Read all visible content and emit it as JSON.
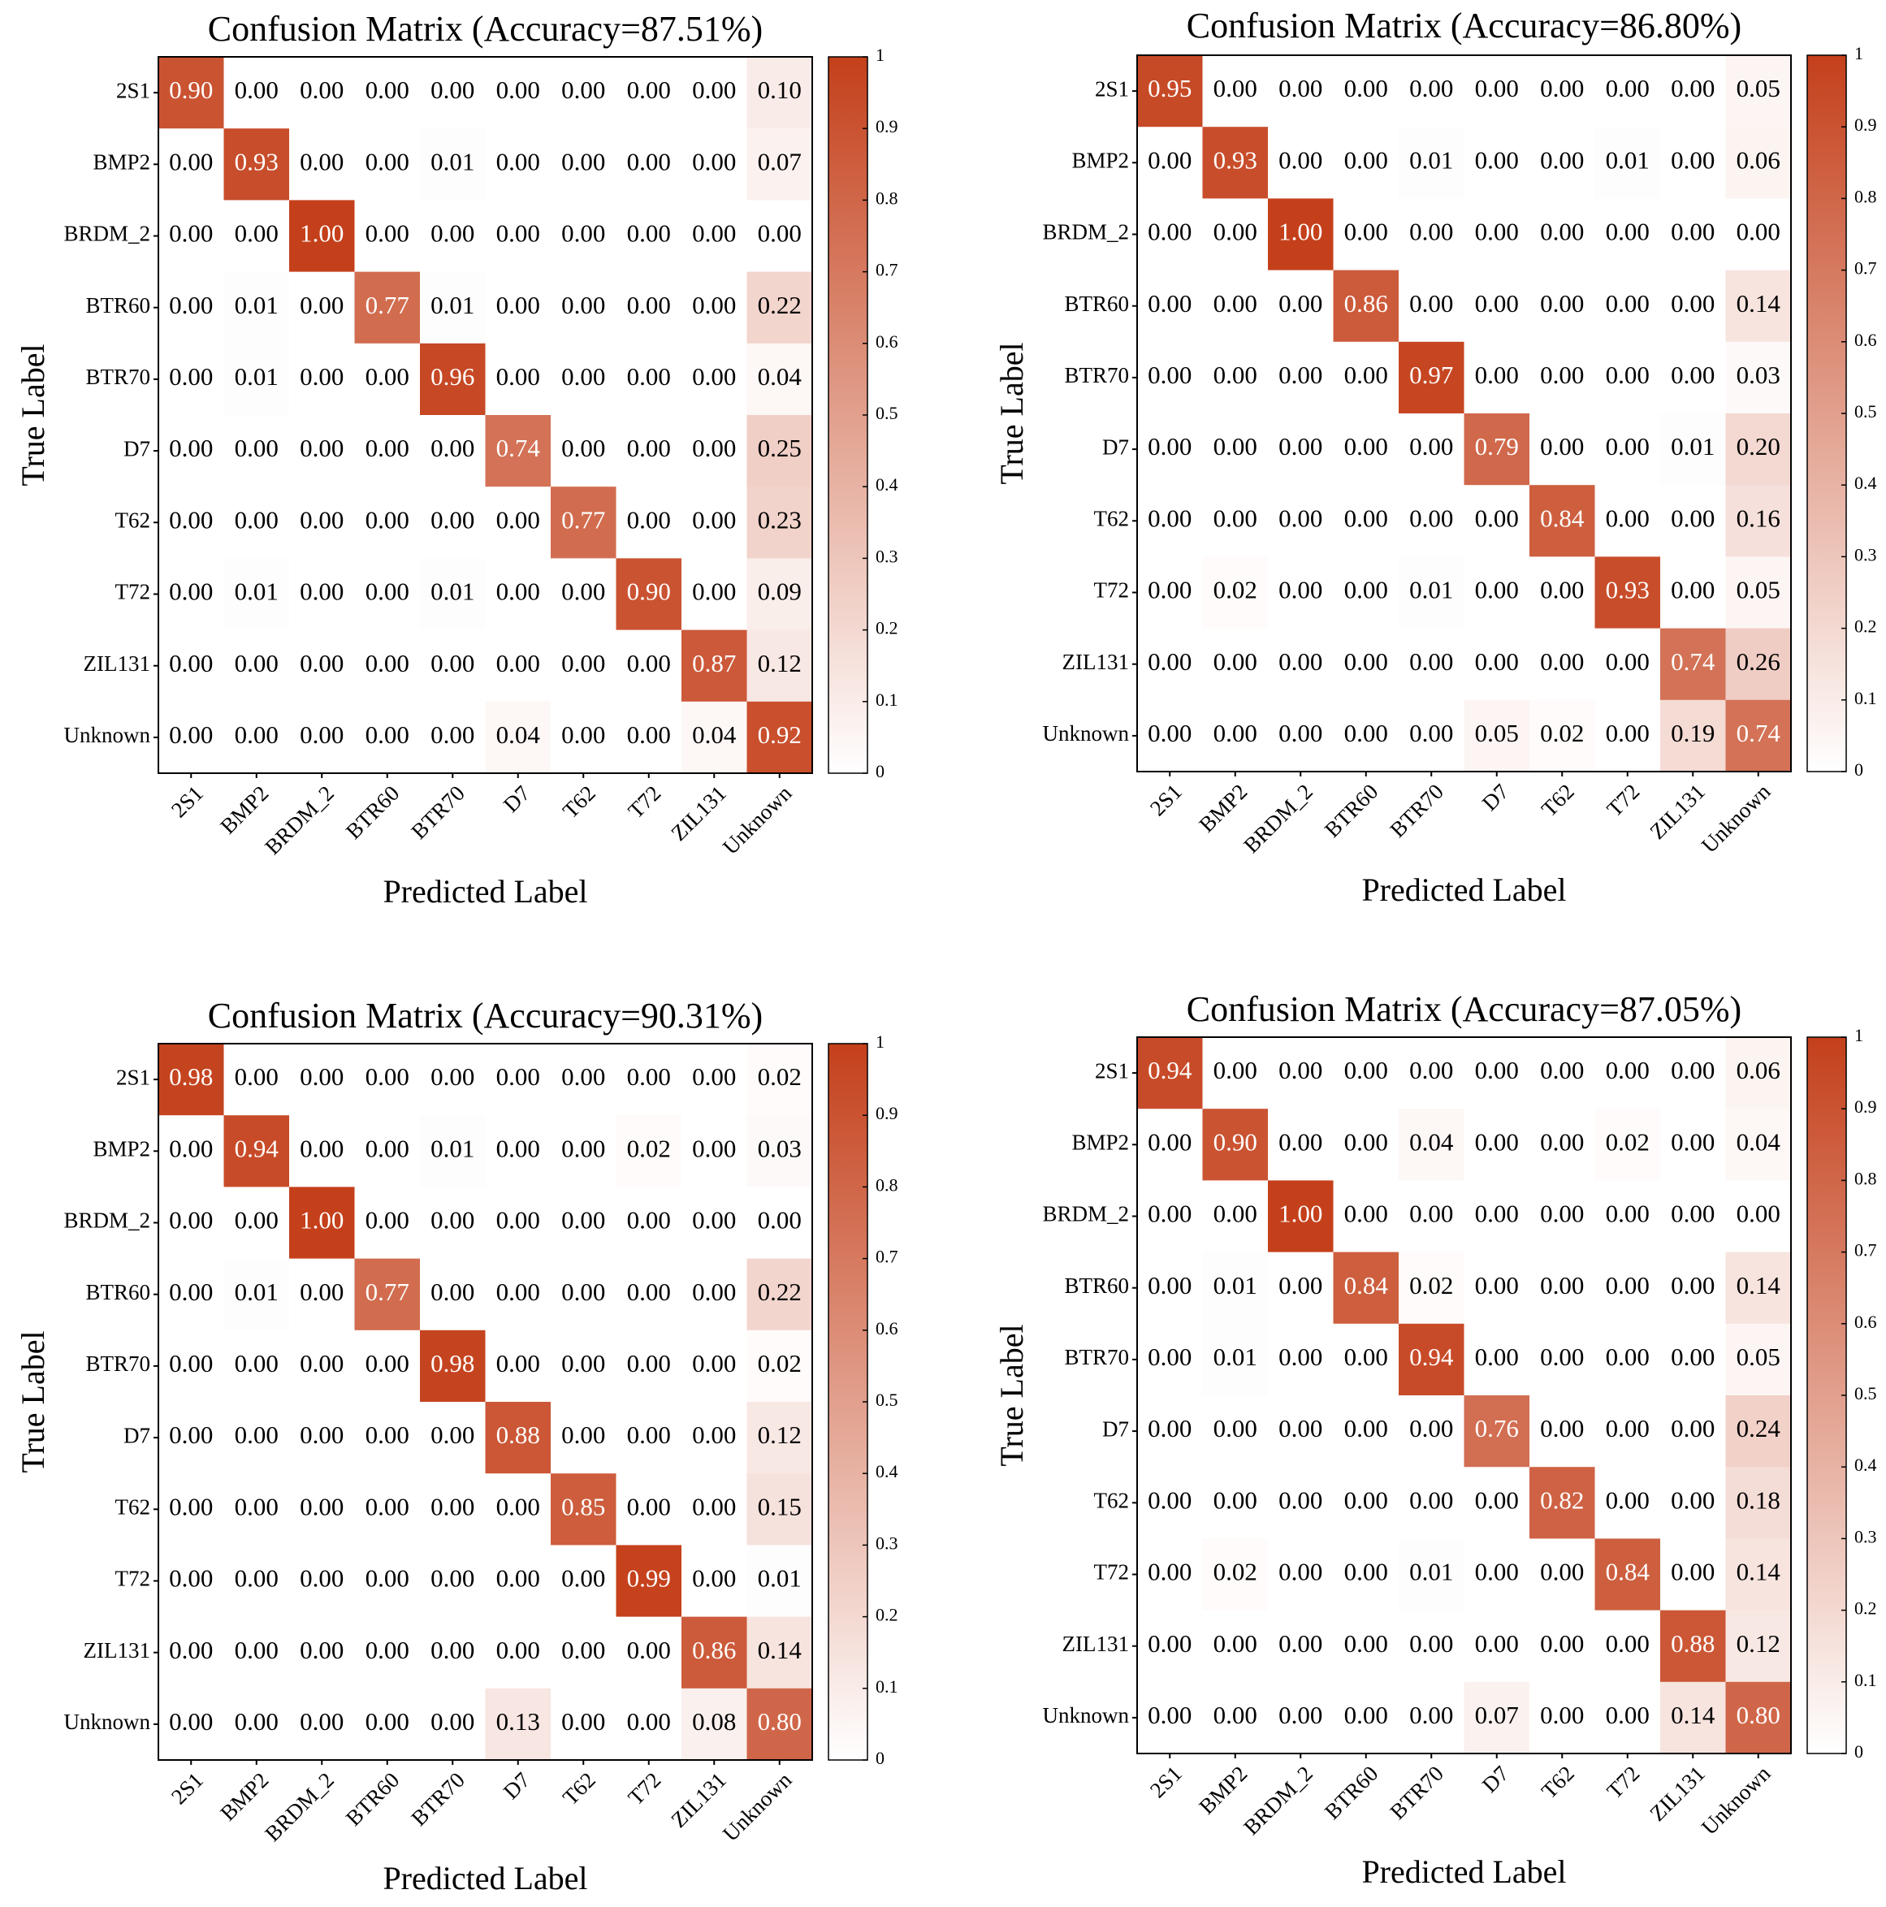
{
  "figure": {
    "colormap": {
      "low": "#ffffff",
      "high": "#c4401b"
    },
    "text_color_dark": "#000000",
    "text_color_light": "#ffffff"
  },
  "chart_data": [
    {
      "type": "heatmap",
      "title": "Confusion Matrix (Accuracy=87.51%)",
      "xlabel": "Predicted Label",
      "ylabel": "True Label",
      "x_categories": [
        "2S1",
        "BMP2",
        "BRDM_2",
        "BTR60",
        "BTR70",
        "D7",
        "T62",
        "T72",
        "ZIL131",
        "Unknown"
      ],
      "y_categories": [
        "2S1",
        "BMP2",
        "BRDM_2",
        "BTR60",
        "BTR70",
        "D7",
        "T62",
        "T72",
        "ZIL131",
        "Unknown"
      ],
      "values": [
        [
          0.9,
          0.0,
          0.0,
          0.0,
          0.0,
          0.0,
          0.0,
          0.0,
          0.0,
          0.1
        ],
        [
          0.0,
          0.93,
          0.0,
          0.0,
          0.01,
          0.0,
          0.0,
          0.0,
          0.0,
          0.07
        ],
        [
          0.0,
          0.0,
          1.0,
          0.0,
          0.0,
          0.0,
          0.0,
          0.0,
          0.0,
          0.0
        ],
        [
          0.0,
          0.01,
          0.0,
          0.77,
          0.01,
          0.0,
          0.0,
          0.0,
          0.0,
          0.22
        ],
        [
          0.0,
          0.01,
          0.0,
          0.0,
          0.96,
          0.0,
          0.0,
          0.0,
          0.0,
          0.04
        ],
        [
          0.0,
          0.0,
          0.0,
          0.0,
          0.0,
          0.74,
          0.0,
          0.0,
          0.0,
          0.25
        ],
        [
          0.0,
          0.0,
          0.0,
          0.0,
          0.0,
          0.0,
          0.77,
          0.0,
          0.0,
          0.23
        ],
        [
          0.0,
          0.01,
          0.0,
          0.0,
          0.01,
          0.0,
          0.0,
          0.9,
          0.0,
          0.09
        ],
        [
          0.0,
          0.0,
          0.0,
          0.0,
          0.0,
          0.0,
          0.0,
          0.0,
          0.87,
          0.12
        ],
        [
          0.0,
          0.0,
          0.0,
          0.0,
          0.0,
          0.04,
          0.0,
          0.0,
          0.04,
          0.92
        ]
      ],
      "colorbar": {
        "range": [
          0,
          1
        ],
        "ticks": [
          "0",
          "0.1",
          "0.2",
          "0.3",
          "0.4",
          "0.5",
          "0.6",
          "0.7",
          "0.8",
          "0.9",
          "1"
        ]
      }
    },
    {
      "type": "heatmap",
      "title": "Confusion Matrix (Accuracy=86.80%)",
      "xlabel": "Predicted Label",
      "ylabel": "True Label",
      "x_categories": [
        "2S1",
        "BMP2",
        "BRDM_2",
        "BTR60",
        "BTR70",
        "D7",
        "T62",
        "T72",
        "ZIL131",
        "Unknown"
      ],
      "y_categories": [
        "2S1",
        "BMP2",
        "BRDM_2",
        "BTR60",
        "BTR70",
        "D7",
        "T62",
        "T72",
        "ZIL131",
        "Unknown"
      ],
      "values": [
        [
          0.95,
          0.0,
          0.0,
          0.0,
          0.0,
          0.0,
          0.0,
          0.0,
          0.0,
          0.05
        ],
        [
          0.0,
          0.93,
          0.0,
          0.0,
          0.01,
          0.0,
          0.0,
          0.01,
          0.0,
          0.06
        ],
        [
          0.0,
          0.0,
          1.0,
          0.0,
          0.0,
          0.0,
          0.0,
          0.0,
          0.0,
          0.0
        ],
        [
          0.0,
          0.0,
          0.0,
          0.86,
          0.0,
          0.0,
          0.0,
          0.0,
          0.0,
          0.14
        ],
        [
          0.0,
          0.0,
          0.0,
          0.0,
          0.97,
          0.0,
          0.0,
          0.0,
          0.0,
          0.03
        ],
        [
          0.0,
          0.0,
          0.0,
          0.0,
          0.0,
          0.79,
          0.0,
          0.0,
          0.01,
          0.2
        ],
        [
          0.0,
          0.0,
          0.0,
          0.0,
          0.0,
          0.0,
          0.84,
          0.0,
          0.0,
          0.16
        ],
        [
          0.0,
          0.02,
          0.0,
          0.0,
          0.01,
          0.0,
          0.0,
          0.93,
          0.0,
          0.05
        ],
        [
          0.0,
          0.0,
          0.0,
          0.0,
          0.0,
          0.0,
          0.0,
          0.0,
          0.74,
          0.26
        ],
        [
          0.0,
          0.0,
          0.0,
          0.0,
          0.0,
          0.05,
          0.02,
          0.0,
          0.19,
          0.74
        ]
      ],
      "colorbar": {
        "range": [
          0,
          1
        ],
        "ticks": [
          "0",
          "0.1",
          "0.2",
          "0.3",
          "0.4",
          "0.5",
          "0.6",
          "0.7",
          "0.8",
          "0.9",
          "1"
        ]
      }
    },
    {
      "type": "heatmap",
      "title": "Confusion Matrix (Accuracy=90.31%)",
      "xlabel": "Predicted Label",
      "ylabel": "True Label",
      "x_categories": [
        "2S1",
        "BMP2",
        "BRDM_2",
        "BTR60",
        "BTR70",
        "D7",
        "T62",
        "T72",
        "ZIL131",
        "Unknown"
      ],
      "y_categories": [
        "2S1",
        "BMP2",
        "BRDM_2",
        "BTR60",
        "BTR70",
        "D7",
        "T62",
        "T72",
        "ZIL131",
        "Unknown"
      ],
      "values": [
        [
          0.98,
          0.0,
          0.0,
          0.0,
          0.0,
          0.0,
          0.0,
          0.0,
          0.0,
          0.02
        ],
        [
          0.0,
          0.94,
          0.0,
          0.0,
          0.01,
          0.0,
          0.0,
          0.02,
          0.0,
          0.03
        ],
        [
          0.0,
          0.0,
          1.0,
          0.0,
          0.0,
          0.0,
          0.0,
          0.0,
          0.0,
          0.0
        ],
        [
          0.0,
          0.01,
          0.0,
          0.77,
          0.0,
          0.0,
          0.0,
          0.0,
          0.0,
          0.22
        ],
        [
          0.0,
          0.0,
          0.0,
          0.0,
          0.98,
          0.0,
          0.0,
          0.0,
          0.0,
          0.02
        ],
        [
          0.0,
          0.0,
          0.0,
          0.0,
          0.0,
          0.88,
          0.0,
          0.0,
          0.0,
          0.12
        ],
        [
          0.0,
          0.0,
          0.0,
          0.0,
          0.0,
          0.0,
          0.85,
          0.0,
          0.0,
          0.15
        ],
        [
          0.0,
          0.0,
          0.0,
          0.0,
          0.0,
          0.0,
          0.0,
          0.99,
          0.0,
          0.01
        ],
        [
          0.0,
          0.0,
          0.0,
          0.0,
          0.0,
          0.0,
          0.0,
          0.0,
          0.86,
          0.14
        ],
        [
          0.0,
          0.0,
          0.0,
          0.0,
          0.0,
          0.13,
          0.0,
          0.0,
          0.08,
          0.8
        ]
      ],
      "colorbar": {
        "range": [
          0,
          1
        ],
        "ticks": [
          "0",
          "0.1",
          "0.2",
          "0.3",
          "0.4",
          "0.5",
          "0.6",
          "0.7",
          "0.8",
          "0.9",
          "1"
        ]
      }
    },
    {
      "type": "heatmap",
      "title": "Confusion Matrix (Accuracy=87.05%)",
      "xlabel": "Predicted Label",
      "ylabel": "True Label",
      "x_categories": [
        "2S1",
        "BMP2",
        "BRDM_2",
        "BTR60",
        "BTR70",
        "D7",
        "T62",
        "T72",
        "ZIL131",
        "Unknown"
      ],
      "y_categories": [
        "2S1",
        "BMP2",
        "BRDM_2",
        "BTR60",
        "BTR70",
        "D7",
        "T62",
        "T72",
        "ZIL131",
        "Unknown"
      ],
      "values": [
        [
          0.94,
          0.0,
          0.0,
          0.0,
          0.0,
          0.0,
          0.0,
          0.0,
          0.0,
          0.06
        ],
        [
          0.0,
          0.9,
          0.0,
          0.0,
          0.04,
          0.0,
          0.0,
          0.02,
          0.0,
          0.04
        ],
        [
          0.0,
          0.0,
          1.0,
          0.0,
          0.0,
          0.0,
          0.0,
          0.0,
          0.0,
          0.0
        ],
        [
          0.0,
          0.01,
          0.0,
          0.84,
          0.02,
          0.0,
          0.0,
          0.0,
          0.0,
          0.14
        ],
        [
          0.0,
          0.01,
          0.0,
          0.0,
          0.94,
          0.0,
          0.0,
          0.0,
          0.0,
          0.05
        ],
        [
          0.0,
          0.0,
          0.0,
          0.0,
          0.0,
          0.76,
          0.0,
          0.0,
          0.0,
          0.24
        ],
        [
          0.0,
          0.0,
          0.0,
          0.0,
          0.0,
          0.0,
          0.82,
          0.0,
          0.0,
          0.18
        ],
        [
          0.0,
          0.02,
          0.0,
          0.0,
          0.01,
          0.0,
          0.0,
          0.84,
          0.0,
          0.14
        ],
        [
          0.0,
          0.0,
          0.0,
          0.0,
          0.0,
          0.0,
          0.0,
          0.0,
          0.88,
          0.12
        ],
        [
          0.0,
          0.0,
          0.0,
          0.0,
          0.0,
          0.07,
          0.0,
          0.0,
          0.14,
          0.8
        ]
      ],
      "colorbar": {
        "range": [
          0,
          1
        ],
        "ticks": [
          "0",
          "0.1",
          "0.2",
          "0.3",
          "0.4",
          "0.5",
          "0.6",
          "0.7",
          "0.8",
          "0.9",
          "1"
        ]
      }
    }
  ]
}
